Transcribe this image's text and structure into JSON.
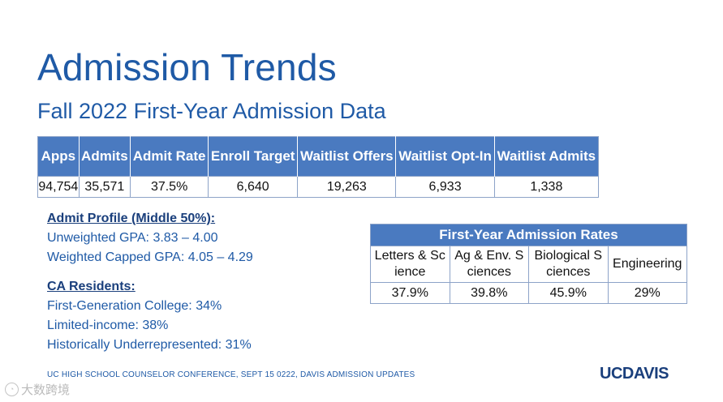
{
  "title": "Admission Trends",
  "subtitle": "Fall 2022 First-Year Admission Data",
  "main_table": {
    "headers": [
      "Apps",
      "Admits",
      "Admit Rate",
      "Enroll Target",
      "Waitlist Offers",
      "Waitlist Opt-In",
      "Waitlist Admits"
    ],
    "values": [
      "94,754",
      "35,571",
      "37.5%",
      "6,640",
      "19,263",
      "6,933",
      "1,338"
    ]
  },
  "admit_profile": {
    "heading": "Admit Profile (Middle 50%):",
    "items": [
      "Unweighted GPA: 3.83 – 4.00",
      "Weighted Capped GPA: 4.05 – 4.29"
    ]
  },
  "ca_residents": {
    "heading": "CA Residents:",
    "items": [
      "First-Generation College: 34%",
      "Limited-income: 38%",
      "Historically Underrepresented: 31%"
    ]
  },
  "rates_table": {
    "title": "First-Year Admission Rates",
    "headers": [
      "Letters & Science",
      "Ag & Env. Sciences",
      "Biological Sciences",
      "Engineering"
    ],
    "values": [
      "37.9%",
      "39.8%",
      "45.9%",
      "29%"
    ]
  },
  "footer": "UC HIGH SCHOOL COUNSELOR CONFERENCE, SEPT 15 0222, DAVIS ADMISSION UPDATES",
  "logo": "UCDAVIS",
  "watermark": "大数跨境",
  "colors": {
    "accent": "#1f5aa6",
    "header_bg": "#4a7ac0"
  }
}
